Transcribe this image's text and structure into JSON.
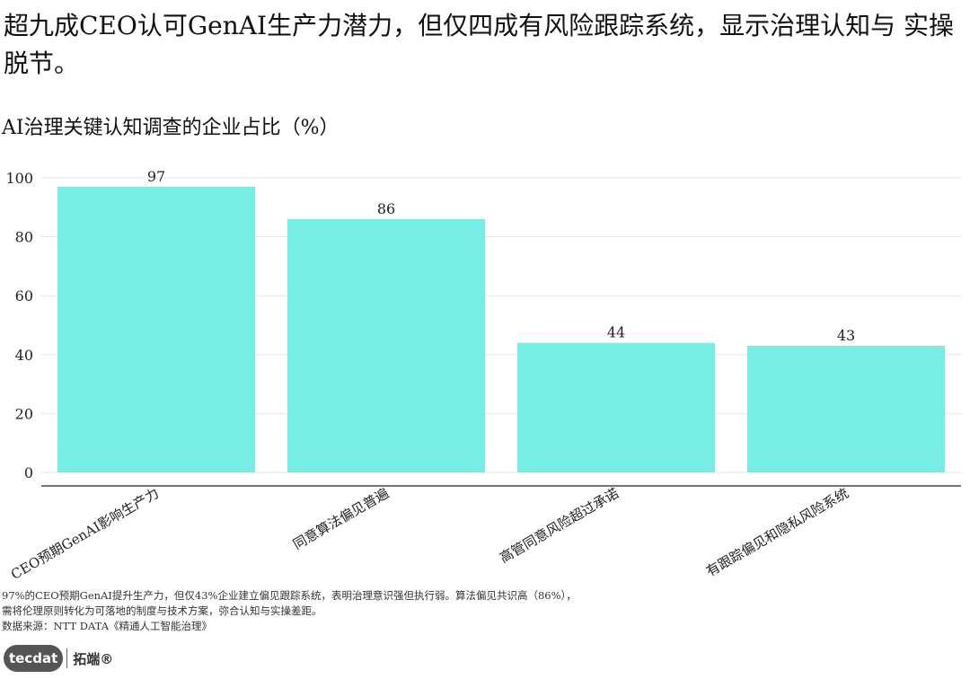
{
  "header": {
    "title": "超九成CEO认可GenAI生产力潜力，但仅四成有风险跟踪系统，显示治理认知与 实操脱节。",
    "subtitle": "AI治理关键认知调查的企业占比（%）"
  },
  "chart_data": {
    "type": "bar",
    "categories": [
      "CEO预期GenAI影响生产力",
      "同意算法偏见普遍",
      "高管同意风险超过承诺",
      "有跟踪偏见和隐私风险系统"
    ],
    "values": [
      97,
      86,
      44,
      43
    ],
    "data_labels": [
      "97",
      "86",
      "44",
      "43"
    ],
    "yticks": [
      "0",
      "20",
      "40",
      "60",
      "80",
      "100"
    ],
    "ylim": [
      0,
      105
    ],
    "grid": true,
    "bar_color": "#76EEE4",
    "grid_color": "#E6E6E6",
    "axis_color": "#222222"
  },
  "notes": [
    "97%的CEO预期GenAI提升生产力，但仅43%企业建立偏见跟踪系统，表明治理意识强但执行弱。算法偏见共识高（86%），",
    "需将伦理原则转化为可落地的制度与技术方案，弥合认知与实操差距。",
    "数据来源：NTT DATA《精通人工智能治理》"
  ],
  "logo": {
    "mark": "tecdat",
    "cn": "拓端®"
  }
}
